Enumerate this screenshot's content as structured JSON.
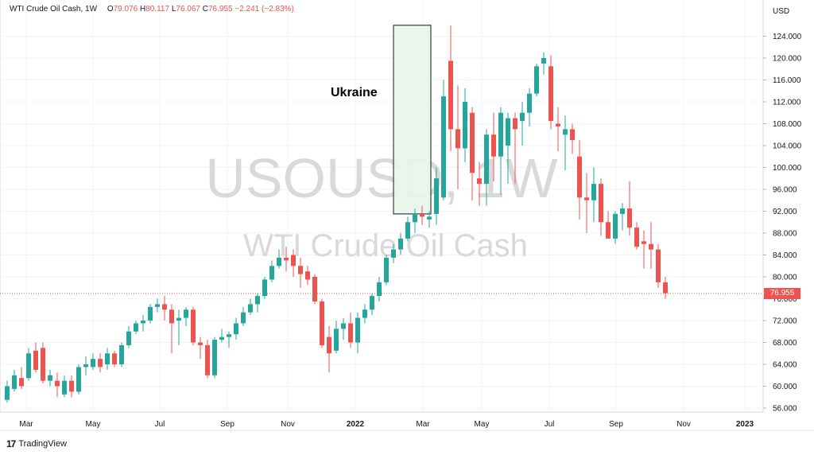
{
  "legend": {
    "symbol": "WTI Crude Oil Cash, 1W",
    "open_label": "O",
    "open": "79.076",
    "high_label": "H",
    "high": "80.117",
    "low_label": "L",
    "low": "76.067",
    "close_label": "C",
    "close": "76.955",
    "change": "−2.241 (−2.83%)"
  },
  "watermark": {
    "ticker": "USOUSD, 1W",
    "name": "WTI Crude Oil Cash"
  },
  "annotation": {
    "label": "Ukraine"
  },
  "axis": {
    "currency": "USD",
    "last_price": "76.955",
    "y_ticks": [
      "124.000",
      "120.000",
      "116.000",
      "112.000",
      "108.000",
      "104.000",
      "100.000",
      "96.000",
      "92.000",
      "88.000",
      "84.000",
      "80.000",
      "76.000",
      "72.000",
      "68.000",
      "64.000",
      "60.000",
      "56.000"
    ],
    "x_ticks": [
      "Mar",
      "May",
      "Jul",
      "Sep",
      "Nov",
      "2022",
      "Mar",
      "May",
      "Jul",
      "Sep",
      "Nov",
      "2023"
    ]
  },
  "branding": {
    "logo_text": "TradingView"
  },
  "colors": {
    "up": "#26a69a",
    "down": "#ef5350",
    "grid": "#f0f3fa",
    "watermark": "#d8d8d8",
    "highlight_fill": "#e8f5e9",
    "highlight_stroke": "#131722"
  },
  "chart_data": {
    "type": "candlestick",
    "interval": "1W",
    "ylim": [
      55,
      126
    ],
    "y_ticks": [
      56,
      60,
      64,
      68,
      72,
      76,
      80,
      84,
      88,
      92,
      96,
      100,
      104,
      108,
      112,
      116,
      120,
      124
    ],
    "candles": [
      {
        "o": 57.5,
        "c": 60.0,
        "h": 61.0,
        "l": 57.0
      },
      {
        "o": 59.5,
        "c": 62.0,
        "h": 63.0,
        "l": 59.0
      },
      {
        "o": 61.5,
        "c": 60.0,
        "h": 63.5,
        "l": 59.5
      },
      {
        "o": 61.5,
        "c": 66.0,
        "h": 67.0,
        "l": 61.0
      },
      {
        "o": 66.5,
        "c": 63.0,
        "h": 68.0,
        "l": 62.5
      },
      {
        "o": 67.0,
        "c": 61.0,
        "h": 68.0,
        "l": 60.5
      },
      {
        "o": 61.0,
        "c": 62.0,
        "h": 63.0,
        "l": 60.0
      },
      {
        "o": 61.0,
        "c": 60.0,
        "h": 62.5,
        "l": 58.0
      },
      {
        "o": 58.5,
        "c": 61.0,
        "h": 62.0,
        "l": 58.0
      },
      {
        "o": 61.0,
        "c": 59.0,
        "h": 62.0,
        "l": 58.0
      },
      {
        "o": 59.0,
        "c": 63.5,
        "h": 64.0,
        "l": 58.5
      },
      {
        "o": 63.5,
        "c": 64.0,
        "h": 65.5,
        "l": 62.0
      },
      {
        "o": 63.5,
        "c": 65.0,
        "h": 66.0,
        "l": 63.0
      },
      {
        "o": 65.0,
        "c": 63.5,
        "h": 66.0,
        "l": 62.5
      },
      {
        "o": 64.0,
        "c": 66.0,
        "h": 67.0,
        "l": 63.0
      },
      {
        "o": 66.0,
        "c": 64.0,
        "h": 66.5,
        "l": 63.5
      },
      {
        "o": 64.0,
        "c": 67.5,
        "h": 68.0,
        "l": 63.5
      },
      {
        "o": 67.5,
        "c": 70.0,
        "h": 71.0,
        "l": 67.0
      },
      {
        "o": 70.0,
        "c": 71.5,
        "h": 72.0,
        "l": 69.5
      },
      {
        "o": 71.5,
        "c": 72.0,
        "h": 73.0,
        "l": 70.0
      },
      {
        "o": 72.0,
        "c": 74.5,
        "h": 75.0,
        "l": 71.5
      },
      {
        "o": 74.5,
        "c": 75.0,
        "h": 76.0,
        "l": 73.5
      },
      {
        "o": 75.0,
        "c": 74.0,
        "h": 76.5,
        "l": 72.0
      },
      {
        "o": 74.0,
        "c": 71.5,
        "h": 75.0,
        "l": 66.0
      },
      {
        "o": 72.0,
        "c": 72.5,
        "h": 74.0,
        "l": 67.5
      },
      {
        "o": 72.5,
        "c": 74.0,
        "h": 74.5,
        "l": 71.0
      },
      {
        "o": 74.0,
        "c": 68.0,
        "h": 74.5,
        "l": 67.5
      },
      {
        "o": 68.0,
        "c": 67.5,
        "h": 69.0,
        "l": 65.0
      },
      {
        "o": 67.5,
        "c": 62.0,
        "h": 68.5,
        "l": 61.5
      },
      {
        "o": 62.0,
        "c": 68.5,
        "h": 69.0,
        "l": 61.5
      },
      {
        "o": 68.5,
        "c": 69.0,
        "h": 70.5,
        "l": 68.0
      },
      {
        "o": 69.0,
        "c": 69.5,
        "h": 70.0,
        "l": 67.0
      },
      {
        "o": 69.5,
        "c": 71.5,
        "h": 72.5,
        "l": 68.5
      },
      {
        "o": 71.5,
        "c": 73.5,
        "h": 74.5,
        "l": 71.0
      },
      {
        "o": 73.5,
        "c": 75.0,
        "h": 76.0,
        "l": 73.0
      },
      {
        "o": 75.0,
        "c": 76.5,
        "h": 77.0,
        "l": 73.5
      },
      {
        "o": 76.5,
        "c": 79.5,
        "h": 80.0,
        "l": 76.0
      },
      {
        "o": 79.5,
        "c": 82.0,
        "h": 83.0,
        "l": 79.0
      },
      {
        "o": 82.0,
        "c": 83.5,
        "h": 85.0,
        "l": 81.5
      },
      {
        "o": 83.5,
        "c": 83.0,
        "h": 85.5,
        "l": 81.0
      },
      {
        "o": 84.0,
        "c": 82.0,
        "h": 85.0,
        "l": 80.0
      },
      {
        "o": 82.0,
        "c": 80.5,
        "h": 83.5,
        "l": 78.0
      },
      {
        "o": 81.0,
        "c": 79.5,
        "h": 82.0,
        "l": 78.5
      },
      {
        "o": 80.0,
        "c": 75.5,
        "h": 80.5,
        "l": 75.0
      },
      {
        "o": 75.5,
        "c": 67.5,
        "h": 76.0,
        "l": 67.0
      },
      {
        "o": 69.0,
        "c": 66.0,
        "h": 71.0,
        "l": 62.5
      },
      {
        "o": 66.5,
        "c": 70.5,
        "h": 72.0,
        "l": 66.0
      },
      {
        "o": 70.5,
        "c": 71.5,
        "h": 72.5,
        "l": 68.5
      },
      {
        "o": 71.5,
        "c": 68.0,
        "h": 73.5,
        "l": 67.0
      },
      {
        "o": 68.0,
        "c": 72.5,
        "h": 73.5,
        "l": 66.0
      },
      {
        "o": 72.5,
        "c": 74.0,
        "h": 75.0,
        "l": 71.5
      },
      {
        "o": 74.0,
        "c": 76.5,
        "h": 77.0,
        "l": 73.0
      },
      {
        "o": 76.5,
        "c": 79.0,
        "h": 80.0,
        "l": 75.5
      },
      {
        "o": 79.0,
        "c": 83.5,
        "h": 84.0,
        "l": 78.5
      },
      {
        "o": 83.5,
        "c": 85.0,
        "h": 86.0,
        "l": 82.5
      },
      {
        "o": 85.0,
        "c": 87.0,
        "h": 88.0,
        "l": 84.0
      },
      {
        "o": 87.0,
        "c": 90.0,
        "h": 91.0,
        "l": 86.5
      },
      {
        "o": 90.0,
        "c": 91.5,
        "h": 92.5,
        "l": 88.0
      },
      {
        "o": 91.5,
        "c": 91.0,
        "h": 93.0,
        "l": 89.5
      },
      {
        "o": 90.5,
        "c": 91.0,
        "h": 92.0,
        "l": 89.0
      },
      {
        "o": 91.5,
        "c": 98.0,
        "h": 100.0,
        "l": 89.5
      },
      {
        "o": 94.5,
        "c": 113.0,
        "h": 116.0,
        "l": 94.0
      },
      {
        "o": 119.5,
        "c": 107.0,
        "h": 126.0,
        "l": 103.0
      },
      {
        "o": 107.0,
        "c": 103.5,
        "h": 115.0,
        "l": 96.0
      },
      {
        "o": 103.5,
        "c": 112.0,
        "h": 114.5,
        "l": 101.0
      },
      {
        "o": 110.0,
        "c": 99.0,
        "h": 111.0,
        "l": 94.0
      },
      {
        "o": 98.0,
        "c": 97.0,
        "h": 101.0,
        "l": 93.0
      },
      {
        "o": 97.0,
        "c": 106.0,
        "h": 107.0,
        "l": 93.0
      },
      {
        "o": 106.0,
        "c": 102.0,
        "h": 110.0,
        "l": 97.5
      },
      {
        "o": 102.0,
        "c": 110.0,
        "h": 111.0,
        "l": 95.0
      },
      {
        "o": 104.0,
        "c": 109.0,
        "h": 110.0,
        "l": 97.0
      },
      {
        "o": 109.0,
        "c": 107.0,
        "h": 110.0,
        "l": 97.0
      },
      {
        "o": 108.5,
        "c": 110.0,
        "h": 112.0,
        "l": 104.0
      },
      {
        "o": 110.0,
        "c": 113.5,
        "h": 114.5,
        "l": 107.5
      },
      {
        "o": 113.5,
        "c": 118.5,
        "h": 119.0,
        "l": 113.0
      },
      {
        "o": 119.0,
        "c": 120.0,
        "h": 121.0,
        "l": 117.0
      },
      {
        "o": 118.5,
        "c": 108.5,
        "h": 120.5,
        "l": 107.0
      },
      {
        "o": 108.0,
        "c": 107.5,
        "h": 111.0,
        "l": 103.0
      },
      {
        "o": 106.0,
        "c": 107.0,
        "h": 109.5,
        "l": 99.5
      },
      {
        "o": 107.0,
        "c": 105.0,
        "h": 108.0,
        "l": 102.5
      },
      {
        "o": 102.0,
        "c": 94.5,
        "h": 105.0,
        "l": 90.5
      },
      {
        "o": 94.5,
        "c": 94.0,
        "h": 99.0,
        "l": 88.0
      },
      {
        "o": 94.0,
        "c": 97.0,
        "h": 100.0,
        "l": 90.0
      },
      {
        "o": 97.0,
        "c": 90.0,
        "h": 98.0,
        "l": 87.5
      },
      {
        "o": 90.0,
        "c": 87.0,
        "h": 92.0,
        "l": 87.0
      },
      {
        "o": 87.0,
        "c": 91.5,
        "h": 92.0,
        "l": 86.0
      },
      {
        "o": 91.5,
        "c": 92.5,
        "h": 93.5,
        "l": 88.5
      },
      {
        "o": 92.5,
        "c": 89.0,
        "h": 97.5,
        "l": 87.5
      },
      {
        "o": 89.0,
        "c": 85.5,
        "h": 90.0,
        "l": 85.0
      },
      {
        "o": 86.5,
        "c": 86.0,
        "h": 88.5,
        "l": 81.5
      },
      {
        "o": 86.0,
        "c": 85.0,
        "h": 90.0,
        "l": 81.5
      },
      {
        "o": 85.0,
        "c": 79.0,
        "h": 86.0,
        "l": 78.0
      },
      {
        "o": 79.0,
        "c": 77.0,
        "h": 80.0,
        "l": 76.0
      }
    ],
    "highlight": {
      "from_index": 59,
      "to_index": 63,
      "high": 126.0,
      "low": 91.5,
      "label": "Ukraine"
    },
    "last_price": 76.955
  }
}
